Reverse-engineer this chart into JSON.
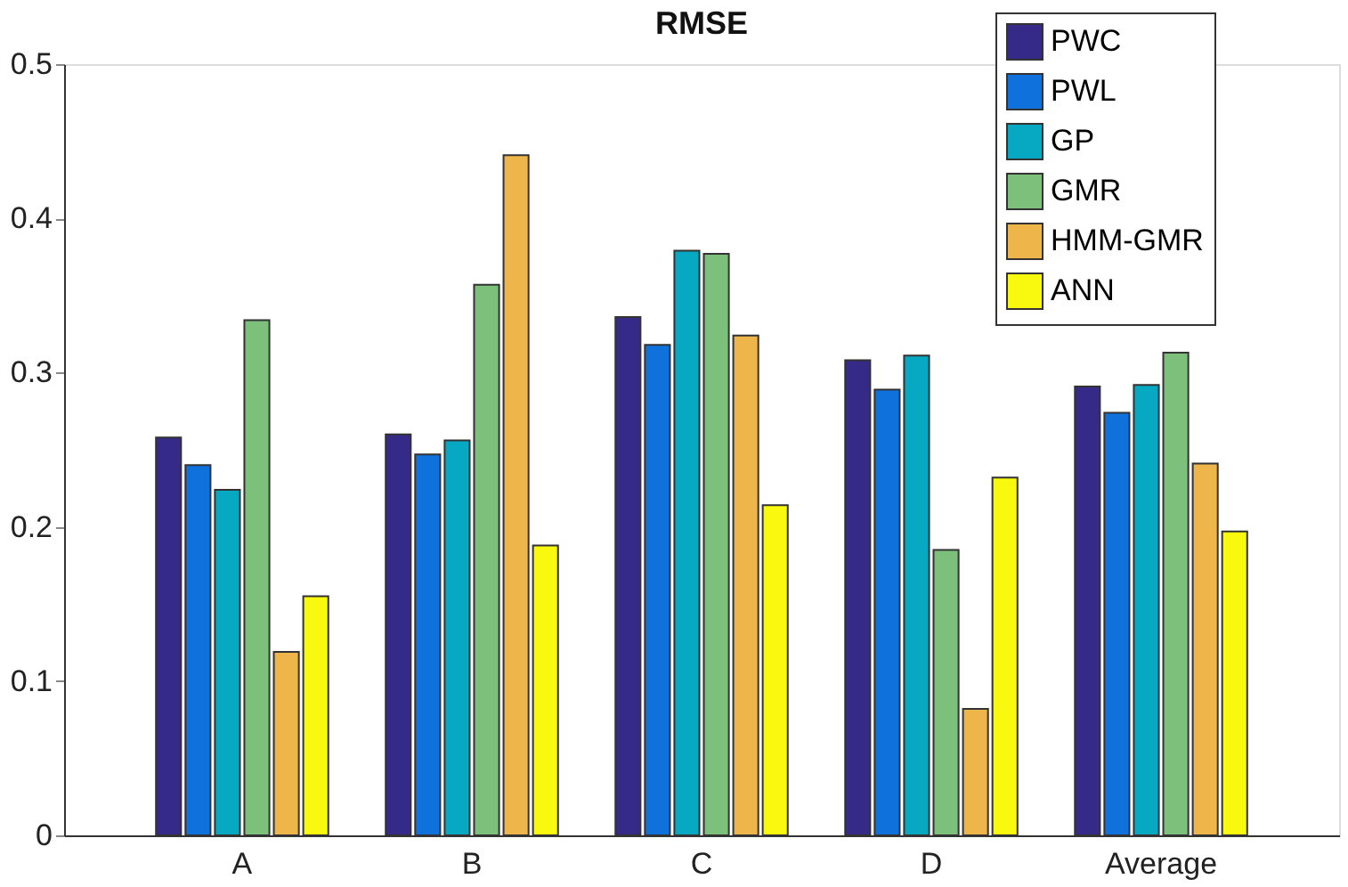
{
  "chart_data": {
    "type": "bar",
    "title": "RMSE",
    "categories": [
      "A",
      "B",
      "C",
      "D",
      "Average"
    ],
    "series": [
      {
        "name": "PWC",
        "color": "#352a87",
        "values": [
          0.258,
          0.26,
          0.336,
          0.308,
          0.291
        ]
      },
      {
        "name": "PWL",
        "color": "#0f72dc",
        "values": [
          0.24,
          0.247,
          0.318,
          0.289,
          0.274
        ]
      },
      {
        "name": "GP",
        "color": "#07a9c2",
        "values": [
          0.224,
          0.256,
          0.379,
          0.311,
          0.292
        ]
      },
      {
        "name": "GMR",
        "color": "#7cc07c",
        "values": [
          0.334,
          0.357,
          0.377,
          0.185,
          0.313
        ]
      },
      {
        "name": "HMM-GMR",
        "color": "#edb54a",
        "values": [
          0.119,
          0.441,
          0.324,
          0.082,
          0.241
        ]
      },
      {
        "name": "ANN",
        "color": "#f9f90f",
        "values": [
          0.155,
          0.188,
          0.214,
          0.232,
          0.197
        ]
      }
    ],
    "ylim": [
      0,
      0.5
    ],
    "yticks": [
      0,
      0.1,
      0.2,
      0.3,
      0.4,
      0.5
    ],
    "grid": false,
    "legend": "top right"
  }
}
